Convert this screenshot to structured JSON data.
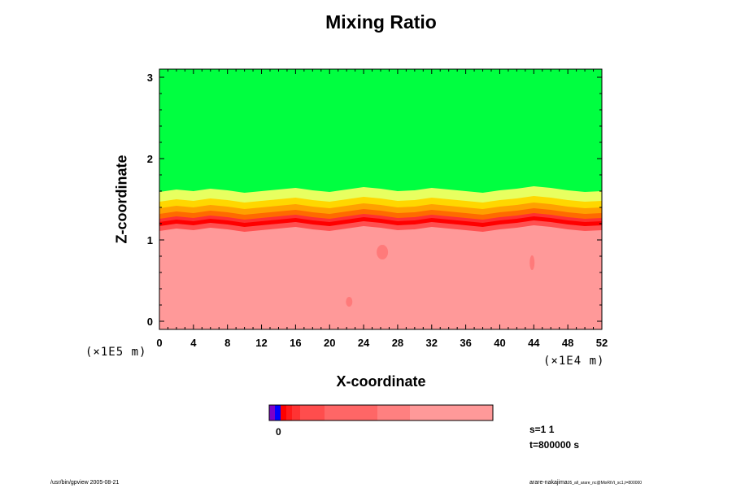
{
  "chart_data": {
    "type": "heatmap",
    "title": "Mixing Ratio",
    "xlabel": "X-coordinate",
    "ylabel": "Z-coordinate",
    "x_ticks": [
      "0",
      "4",
      "8",
      "12",
      "16",
      "20",
      "24",
      "28",
      "32",
      "36",
      "40",
      "44",
      "48",
      "52"
    ],
    "y_ticks": [
      "0",
      "1",
      "2",
      "3"
    ],
    "x_scale_label": "(×1E4 m)",
    "z_scale_label": "(×1E5 m)",
    "xlim": [
      0,
      52
    ],
    "ylim": [
      -0.1,
      3.1
    ],
    "upper_fill": "#00ff40",
    "lower_fill": "#ff9999",
    "interface_z": [
      1.17,
      1.2,
      1.18,
      1.21,
      1.19,
      1.16,
      1.18,
      1.2,
      1.22,
      1.19,
      1.17,
      1.2,
      1.23,
      1.21,
      1.18,
      1.19,
      1.22,
      1.2,
      1.18,
      1.16,
      1.19,
      1.21,
      1.24,
      1.22,
      1.19,
      1.17,
      1.18
    ],
    "colorbar": {
      "colors": [
        "#7b00c8",
        "#0000ff",
        "#ff0000",
        "#ff1a1a",
        "#ff3333",
        "#ff4d4d",
        "#ff6666",
        "#ff8080",
        "#ff9999"
      ],
      "label": "0"
    },
    "annotations": [
      "s=1 1",
      "t=800000 s"
    ]
  },
  "footer": {
    "left": "/usr/bin/gpview 2005-08-21",
    "right": "arare-nakajima",
    "right_small": "05_all_arare_nc@MixRtVt_sc1,t=800000"
  }
}
